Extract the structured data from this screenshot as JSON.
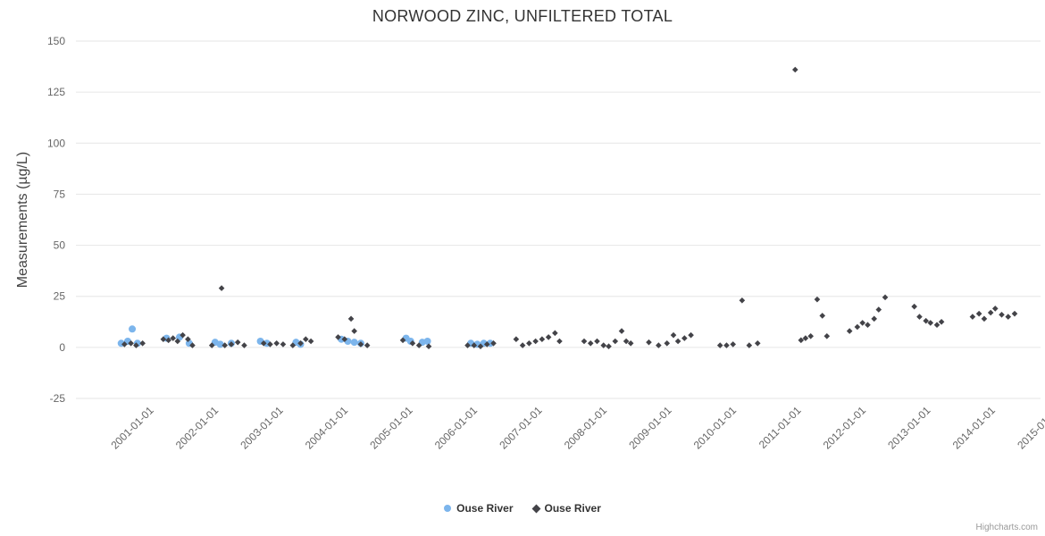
{
  "chart_data": {
    "type": "scatter",
    "title": "NORWOOD ZINC, UNFILTERED TOTAL",
    "xlabel": "",
    "ylabel": "Measurements (µg/L)",
    "ylim": [
      -25,
      150
    ],
    "xlim": [
      2000.15,
      2015.05
    ],
    "y_ticks": [
      -25,
      0,
      25,
      50,
      75,
      100,
      125,
      150
    ],
    "x_ticks": [
      2001,
      2002,
      2003,
      2004,
      2005,
      2006,
      2007,
      2008,
      2009,
      2010,
      2011,
      2012,
      2013,
      2014,
      2015
    ],
    "x_tick_labels": [
      "2001-01-01",
      "2002-01-01",
      "2003-01-01",
      "2004-01-01",
      "2005-01-01",
      "2006-01-01",
      "2007-01-01",
      "2008-01-01",
      "2009-01-01",
      "2010-01-01",
      "2011-01-01",
      "2012-01-01",
      "2013-01-01",
      "2014-01-01",
      "2015-01-01"
    ],
    "grid": "horizontal",
    "grid_color": "#e6e6e6",
    "legend_position": "bottom",
    "series": [
      {
        "name": "Ouse River",
        "marker": "circle",
        "color": "#7cb5ec",
        "points": [
          [
            2000.85,
            2
          ],
          [
            2000.95,
            3
          ],
          [
            2001.02,
            9
          ],
          [
            2001.1,
            2
          ],
          [
            2001.55,
            4.5
          ],
          [
            2001.75,
            5
          ],
          [
            2001.9,
            2
          ],
          [
            2002.3,
            2.5
          ],
          [
            2002.38,
            1.5
          ],
          [
            2002.55,
            2
          ],
          [
            2003.0,
            3
          ],
          [
            2003.1,
            2
          ],
          [
            2003.55,
            2.5
          ],
          [
            2003.62,
            1.5
          ],
          [
            2004.25,
            4
          ],
          [
            2004.35,
            3
          ],
          [
            2004.45,
            2.5
          ],
          [
            2004.55,
            2
          ],
          [
            2005.25,
            4.5
          ],
          [
            2005.32,
            3
          ],
          [
            2005.5,
            2.5
          ],
          [
            2005.58,
            3
          ],
          [
            2006.25,
            2
          ],
          [
            2006.35,
            1.5
          ],
          [
            2006.45,
            2
          ],
          [
            2006.55,
            2
          ]
        ]
      },
      {
        "name": "Ouse River",
        "marker": "diamond",
        "color": "#434348",
        "points": [
          [
            2000.9,
            1.5
          ],
          [
            2001.0,
            2
          ],
          [
            2001.08,
            1
          ],
          [
            2001.18,
            2
          ],
          [
            2001.5,
            4
          ],
          [
            2001.58,
            3.5
          ],
          [
            2001.65,
            4.5
          ],
          [
            2001.72,
            3
          ],
          [
            2001.8,
            6
          ],
          [
            2001.88,
            4
          ],
          [
            2001.95,
            1
          ],
          [
            2002.25,
            1
          ],
          [
            2002.4,
            29
          ],
          [
            2002.45,
            1
          ],
          [
            2002.55,
            1.5
          ],
          [
            2002.65,
            2.5
          ],
          [
            2002.75,
            1
          ],
          [
            2003.05,
            2
          ],
          [
            2003.15,
            1.5
          ],
          [
            2003.25,
            2
          ],
          [
            2003.35,
            1.5
          ],
          [
            2003.5,
            1
          ],
          [
            2003.62,
            2
          ],
          [
            2003.7,
            4
          ],
          [
            2003.78,
            3
          ],
          [
            2004.2,
            5
          ],
          [
            2004.3,
            4
          ],
          [
            2004.4,
            14
          ],
          [
            2004.45,
            8
          ],
          [
            2004.55,
            1.5
          ],
          [
            2004.65,
            1
          ],
          [
            2005.2,
            3.5
          ],
          [
            2005.35,
            2
          ],
          [
            2005.45,
            1
          ],
          [
            2005.6,
            0.5
          ],
          [
            2006.2,
            1
          ],
          [
            2006.3,
            1
          ],
          [
            2006.4,
            0.5
          ],
          [
            2006.5,
            1.5
          ],
          [
            2006.6,
            2
          ],
          [
            2006.95,
            4
          ],
          [
            2007.05,
            1
          ],
          [
            2007.15,
            2
          ],
          [
            2007.25,
            3
          ],
          [
            2007.35,
            4
          ],
          [
            2007.45,
            5
          ],
          [
            2007.55,
            7
          ],
          [
            2007.62,
            3
          ],
          [
            2008.0,
            3
          ],
          [
            2008.1,
            2
          ],
          [
            2008.2,
            3
          ],
          [
            2008.3,
            1
          ],
          [
            2008.38,
            0.5
          ],
          [
            2008.48,
            3
          ],
          [
            2008.58,
            8
          ],
          [
            2008.65,
            3
          ],
          [
            2008.72,
            2
          ],
          [
            2009.0,
            2.5
          ],
          [
            2009.15,
            1
          ],
          [
            2009.28,
            2
          ],
          [
            2009.38,
            6
          ],
          [
            2009.45,
            3
          ],
          [
            2009.55,
            4.5
          ],
          [
            2009.65,
            6
          ],
          [
            2010.1,
            1
          ],
          [
            2010.2,
            1
          ],
          [
            2010.3,
            1.5
          ],
          [
            2010.44,
            23
          ],
          [
            2010.55,
            1
          ],
          [
            2010.68,
            2
          ],
          [
            2011.26,
            136
          ],
          [
            2011.35,
            3.5
          ],
          [
            2011.42,
            4.5
          ],
          [
            2011.5,
            5.5
          ],
          [
            2011.6,
            23.5
          ],
          [
            2011.68,
            15.5
          ],
          [
            2011.75,
            5.5
          ],
          [
            2012.1,
            8
          ],
          [
            2012.22,
            10
          ],
          [
            2012.3,
            12
          ],
          [
            2012.38,
            11
          ],
          [
            2012.48,
            14
          ],
          [
            2012.55,
            18.5
          ],
          [
            2012.65,
            24.5
          ],
          [
            2013.1,
            20
          ],
          [
            2013.18,
            15
          ],
          [
            2013.28,
            13
          ],
          [
            2013.35,
            12
          ],
          [
            2013.45,
            11
          ],
          [
            2013.52,
            12.5
          ],
          [
            2014.0,
            15
          ],
          [
            2014.1,
            16.5
          ],
          [
            2014.18,
            14
          ],
          [
            2014.28,
            17
          ],
          [
            2014.35,
            19
          ],
          [
            2014.45,
            16
          ],
          [
            2014.55,
            15
          ],
          [
            2014.65,
            16.5
          ]
        ]
      }
    ]
  },
  "credits_label": "Highcharts.com"
}
